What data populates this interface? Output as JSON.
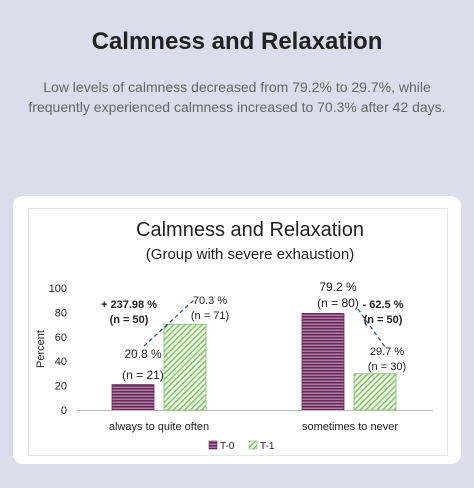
{
  "page": {
    "title": "Calmness and Relaxation",
    "description": "Low levels of calmness decreased from 79.2% to 29.7%, while frequently experienced calmness increased to 70.3% after 42 days."
  },
  "chart_data": {
    "type": "bar",
    "title": "Calmness and Relaxation",
    "subtitle": "(Group with severe exhaustion)",
    "ylabel": "Percent",
    "xlabel": "",
    "ylim": [
      0,
      100
    ],
    "yticks": [
      "0",
      "20",
      "40",
      "60",
      "80",
      "100"
    ],
    "categories": [
      "always to quite often",
      "sometimes to never"
    ],
    "series": [
      {
        "name": "T-0",
        "values": [
          20.8,
          79.2
        ],
        "labels": [
          "20.8 %",
          "79.2 %"
        ],
        "n_labels": [
          "(n = 21)",
          "(n = 80)"
        ],
        "color": "#8a3a7a"
      },
      {
        "name": "T-1",
        "values": [
          70.3,
          29.7
        ],
        "labels": [
          "70.3 %",
          "29.7 %"
        ],
        "n_labels": [
          "(n = 71)",
          "(n = 30)"
        ],
        "color": "#6ab04c"
      }
    ],
    "annotations": [
      {
        "text": "+ 237.98 %",
        "n": "(n = 50)"
      },
      {
        "text": "- 62.5 %",
        "n": "(n = 50)"
      }
    ],
    "legend_position": "bottom",
    "grid": false
  }
}
